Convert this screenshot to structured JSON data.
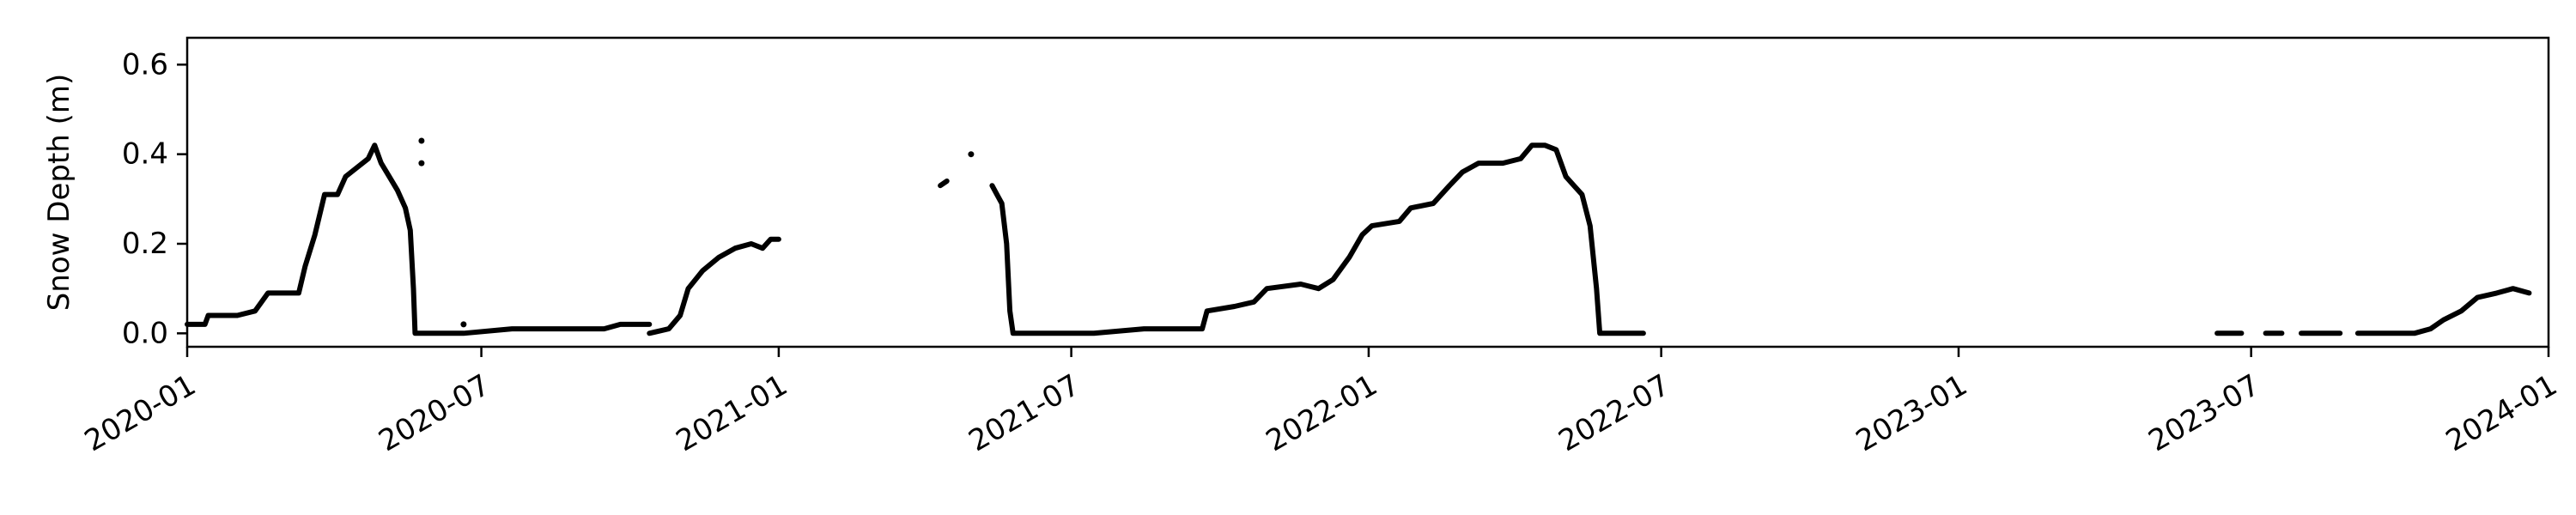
{
  "chart_data": {
    "type": "scatter",
    "ylabel": "Snow Depth (m)",
    "xlabel": "",
    "title": "",
    "xlim": [
      "2020-01-01",
      "2024-01-01"
    ],
    "ylim": [
      -0.03,
      0.66
    ],
    "xticks": [
      "2020-01",
      "2020-07",
      "2021-01",
      "2021-07",
      "2022-01",
      "2022-07",
      "2023-01",
      "2023-07",
      "2024-01"
    ],
    "yticks": [
      "0.0",
      "0.2",
      "0.4",
      "0.6"
    ],
    "grid": false,
    "marker_color": "#000000",
    "series": [
      {
        "segments": [
          [
            [
              "2020-01-01",
              0.02
            ],
            [
              "2020-01-12",
              0.02
            ],
            [
              "2020-01-14",
              0.04
            ],
            [
              "2020-02-01",
              0.04
            ],
            [
              "2020-02-12",
              0.05
            ],
            [
              "2020-02-20",
              0.09
            ],
            [
              "2020-03-10",
              0.09
            ],
            [
              "2020-03-14",
              0.15
            ],
            [
              "2020-03-20",
              0.22
            ],
            [
              "2020-03-26",
              0.31
            ],
            [
              "2020-04-03",
              0.31
            ],
            [
              "2020-04-08",
              0.35
            ],
            [
              "2020-04-15",
              0.37
            ],
            [
              "2020-04-22",
              0.39
            ],
            [
              "2020-04-26",
              0.42
            ],
            [
              "2020-04-30",
              0.38
            ],
            [
              "2020-05-05",
              0.35
            ],
            [
              "2020-05-10",
              0.32
            ],
            [
              "2020-05-15",
              0.28
            ],
            [
              "2020-05-18",
              0.23
            ],
            [
              "2020-05-20",
              0.1
            ],
            [
              "2020-05-21",
              0.0
            ],
            [
              "2020-06-20",
              0.0
            ],
            [
              "2020-07-20",
              0.01
            ],
            [
              "2020-08-20",
              0.01
            ],
            [
              "2020-09-15",
              0.01
            ],
            [
              "2020-09-25",
              0.02
            ],
            [
              "2020-10-13",
              0.02
            ]
          ],
          [
            [
              "2020-10-13",
              0.0
            ],
            [
              "2020-10-25",
              0.01
            ],
            [
              "2020-11-01",
              0.04
            ],
            [
              "2020-11-06",
              0.1
            ],
            [
              "2020-11-15",
              0.14
            ],
            [
              "2020-11-25",
              0.17
            ],
            [
              "2020-12-05",
              0.19
            ],
            [
              "2020-12-15",
              0.2
            ],
            [
              "2020-12-22",
              0.19
            ],
            [
              "2020-12-27",
              0.21
            ],
            [
              "2021-01-01",
              0.21
            ]
          ],
          [
            [
              "2021-04-11",
              0.33
            ],
            [
              "2021-04-15",
              0.34
            ]
          ],
          [
            [
              "2021-05-13",
              0.33
            ],
            [
              "2021-05-16",
              0.31
            ],
            [
              "2021-05-19",
              0.29
            ],
            [
              "2021-05-22",
              0.2
            ],
            [
              "2021-05-24",
              0.05
            ],
            [
              "2021-05-26",
              0.0
            ],
            [
              "2021-07-15",
              0.0
            ],
            [
              "2021-08-15",
              0.01
            ],
            [
              "2021-09-20",
              0.01
            ],
            [
              "2021-09-23",
              0.05
            ],
            [
              "2021-10-10",
              0.06
            ],
            [
              "2021-10-22",
              0.07
            ],
            [
              "2021-10-30",
              0.1
            ],
            [
              "2021-11-20",
              0.11
            ],
            [
              "2021-12-01",
              0.1
            ],
            [
              "2021-12-10",
              0.12
            ],
            [
              "2021-12-20",
              0.17
            ],
            [
              "2021-12-28",
              0.22
            ],
            [
              "2022-01-03",
              0.24
            ],
            [
              "2022-01-20",
              0.25
            ],
            [
              "2022-01-27",
              0.28
            ],
            [
              "2022-02-10",
              0.29
            ],
            [
              "2022-02-20",
              0.33
            ],
            [
              "2022-02-28",
              0.36
            ],
            [
              "2022-03-10",
              0.38
            ],
            [
              "2022-03-25",
              0.38
            ],
            [
              "2022-04-05",
              0.39
            ],
            [
              "2022-04-12",
              0.42
            ],
            [
              "2022-04-20",
              0.42
            ],
            [
              "2022-04-27",
              0.41
            ],
            [
              "2022-05-03",
              0.35
            ],
            [
              "2022-05-08",
              0.33
            ],
            [
              "2022-05-13",
              0.31
            ],
            [
              "2022-05-18",
              0.24
            ],
            [
              "2022-05-22",
              0.1
            ],
            [
              "2022-05-24",
              0.0
            ],
            [
              "2022-06-20",
              0.0
            ]
          ],
          [
            [
              "2023-06-10",
              0.0
            ],
            [
              "2023-06-25",
              0.0
            ]
          ],
          [
            [
              "2023-07-10",
              0.0
            ],
            [
              "2023-07-20",
              0.0
            ]
          ],
          [
            [
              "2023-08-01",
              0.0
            ],
            [
              "2023-08-25",
              0.0
            ]
          ],
          [
            [
              "2023-09-05",
              0.0
            ],
            [
              "2023-10-10",
              0.0
            ],
            [
              "2023-10-20",
              0.01
            ],
            [
              "2023-10-28",
              0.03
            ],
            [
              "2023-11-08",
              0.05
            ],
            [
              "2023-11-18",
              0.08
            ],
            [
              "2023-11-30",
              0.09
            ],
            [
              "2023-12-10",
              0.1
            ],
            [
              "2023-12-20",
              0.09
            ]
          ]
        ],
        "isolated_points": [
          [
            "2020-05-25",
            0.43
          ],
          [
            "2020-05-25",
            0.38
          ],
          [
            "2020-06-20",
            0.02
          ],
          [
            "2021-04-30",
            0.4
          ]
        ]
      }
    ]
  }
}
